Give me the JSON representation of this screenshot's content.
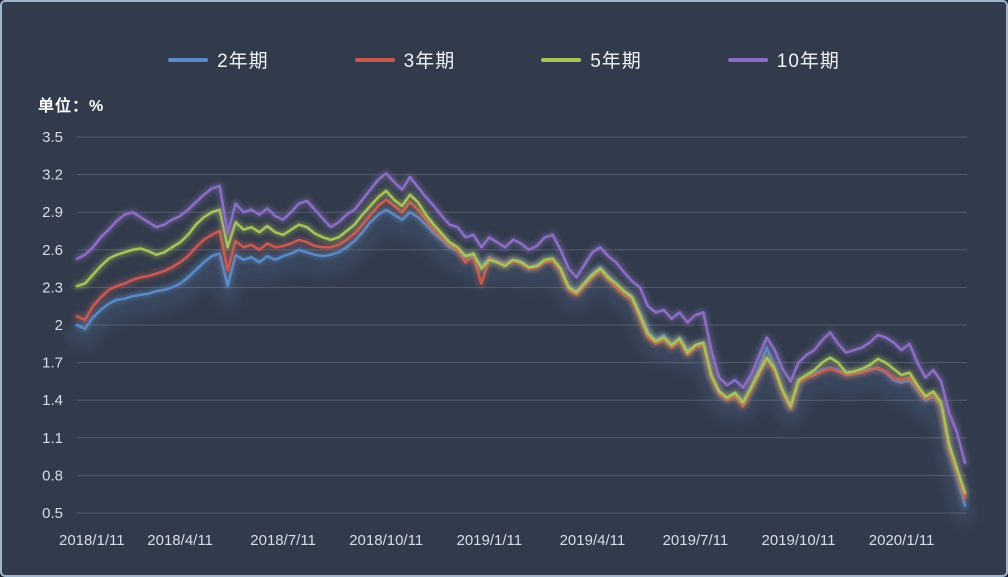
{
  "unit_label": "单位：%",
  "chart_data": {
    "type": "line",
    "title": "",
    "ylabel": "单位：%",
    "ylim": [
      0.5,
      3.5
    ],
    "grid": "horizontal",
    "legend_position": "top",
    "background_color": "#323b4c",
    "yticks": [
      "3.5",
      "3.2",
      "2.9",
      "2.6",
      "2.3",
      "2",
      "1.7",
      "1.4",
      "1.1",
      "0.8",
      "0.5"
    ],
    "x_tick_labels": [
      "2018/1/11",
      "2018/4/11",
      "2018/7/11",
      "2018/10/11",
      "2019/1/11",
      "2019/4/11",
      "2019/7/11",
      "2019/10/11",
      "2020/1/11"
    ],
    "x_tick_indices": [
      0,
      13,
      26,
      39,
      52,
      65,
      78,
      91,
      104
    ],
    "x_unit": "week",
    "n_points": 113,
    "series": [
      {
        "name": "2年期",
        "color": "#5b8ac6",
        "values": [
          2.0,
          1.97,
          2.06,
          2.12,
          2.17,
          2.2,
          2.21,
          2.23,
          2.24,
          2.25,
          2.27,
          2.28,
          2.3,
          2.33,
          2.38,
          2.44,
          2.5,
          2.55,
          2.57,
          2.31,
          2.56,
          2.52,
          2.54,
          2.5,
          2.55,
          2.52,
          2.55,
          2.57,
          2.6,
          2.58,
          2.56,
          2.55,
          2.56,
          2.58,
          2.62,
          2.67,
          2.74,
          2.82,
          2.88,
          2.92,
          2.88,
          2.84,
          2.9,
          2.86,
          2.8,
          2.73,
          2.68,
          2.62,
          2.59,
          2.54,
          2.56,
          2.47,
          2.54,
          2.51,
          2.49,
          2.52,
          2.51,
          2.46,
          2.48,
          2.52,
          2.53,
          2.45,
          2.31,
          2.27,
          2.34,
          2.41,
          2.46,
          2.39,
          2.33,
          2.27,
          2.23,
          2.1,
          1.95,
          1.88,
          1.92,
          1.85,
          1.9,
          1.8,
          1.83,
          1.85,
          1.59,
          1.46,
          1.41,
          1.45,
          1.39,
          1.5,
          1.65,
          1.82,
          1.66,
          1.47,
          1.34,
          1.55,
          1.59,
          1.61,
          1.64,
          1.66,
          1.64,
          1.61,
          1.62,
          1.63,
          1.65,
          1.65,
          1.62,
          1.56,
          1.54,
          1.56,
          1.48,
          1.4,
          1.43,
          1.35,
          1.0,
          0.8,
          0.56
        ]
      },
      {
        "name": "3年期",
        "color": "#c65b54",
        "values": [
          2.07,
          2.04,
          2.15,
          2.22,
          2.28,
          2.31,
          2.33,
          2.36,
          2.38,
          2.39,
          2.41,
          2.43,
          2.46,
          2.5,
          2.55,
          2.62,
          2.68,
          2.72,
          2.75,
          2.44,
          2.67,
          2.62,
          2.64,
          2.6,
          2.65,
          2.62,
          2.63,
          2.65,
          2.68,
          2.66,
          2.63,
          2.62,
          2.62,
          2.64,
          2.68,
          2.73,
          2.8,
          2.88,
          2.95,
          3.0,
          2.95,
          2.9,
          2.98,
          2.92,
          2.84,
          2.76,
          2.7,
          2.64,
          2.6,
          2.5,
          2.55,
          2.33,
          2.53,
          2.5,
          2.48,
          2.51,
          2.49,
          2.45,
          2.46,
          2.5,
          2.51,
          2.43,
          2.28,
          2.24,
          2.31,
          2.38,
          2.43,
          2.36,
          2.3,
          2.24,
          2.2,
          2.05,
          1.9,
          1.85,
          1.88,
          1.82,
          1.87,
          1.76,
          1.82,
          1.84,
          1.58,
          1.45,
          1.4,
          1.43,
          1.35,
          1.48,
          1.6,
          1.73,
          1.63,
          1.46,
          1.33,
          1.54,
          1.58,
          1.6,
          1.63,
          1.65,
          1.63,
          1.6,
          1.61,
          1.62,
          1.64,
          1.66,
          1.63,
          1.58,
          1.56,
          1.58,
          1.49,
          1.41,
          1.44,
          1.36,
          1.02,
          0.82,
          0.62
        ]
      },
      {
        "name": "5年期",
        "color": "#a7c35b",
        "values": [
          2.31,
          2.33,
          2.4,
          2.47,
          2.53,
          2.56,
          2.58,
          2.6,
          2.61,
          2.59,
          2.56,
          2.58,
          2.62,
          2.66,
          2.72,
          2.8,
          2.86,
          2.9,
          2.92,
          2.62,
          2.82,
          2.76,
          2.78,
          2.74,
          2.79,
          2.74,
          2.72,
          2.76,
          2.8,
          2.78,
          2.73,
          2.7,
          2.68,
          2.7,
          2.75,
          2.8,
          2.88,
          2.95,
          3.02,
          3.07,
          3.0,
          2.95,
          3.04,
          2.98,
          2.88,
          2.8,
          2.73,
          2.66,
          2.62,
          2.55,
          2.57,
          2.45,
          2.52,
          2.5,
          2.47,
          2.52,
          2.5,
          2.46,
          2.47,
          2.52,
          2.53,
          2.45,
          2.3,
          2.26,
          2.33,
          2.4,
          2.45,
          2.38,
          2.33,
          2.27,
          2.22,
          2.08,
          1.93,
          1.87,
          1.9,
          1.84,
          1.89,
          1.78,
          1.84,
          1.86,
          1.6,
          1.47,
          1.42,
          1.46,
          1.38,
          1.5,
          1.62,
          1.74,
          1.65,
          1.48,
          1.35,
          1.56,
          1.6,
          1.64,
          1.7,
          1.74,
          1.7,
          1.62,
          1.63,
          1.65,
          1.68,
          1.73,
          1.7,
          1.65,
          1.6,
          1.62,
          1.52,
          1.43,
          1.47,
          1.38,
          1.05,
          0.85,
          0.66
        ]
      },
      {
        "name": "10年期",
        "color": "#8c6fc4",
        "values": [
          2.53,
          2.56,
          2.62,
          2.7,
          2.76,
          2.83,
          2.88,
          2.9,
          2.86,
          2.82,
          2.78,
          2.8,
          2.84,
          2.87,
          2.92,
          2.98,
          3.04,
          3.09,
          3.11,
          2.73,
          2.97,
          2.9,
          2.92,
          2.88,
          2.93,
          2.87,
          2.84,
          2.9,
          2.97,
          2.99,
          2.92,
          2.85,
          2.78,
          2.82,
          2.88,
          2.92,
          3.0,
          3.08,
          3.16,
          3.21,
          3.14,
          3.08,
          3.18,
          3.1,
          3.02,
          2.95,
          2.87,
          2.8,
          2.78,
          2.7,
          2.72,
          2.62,
          2.7,
          2.66,
          2.62,
          2.68,
          2.65,
          2.6,
          2.63,
          2.7,
          2.72,
          2.6,
          2.45,
          2.38,
          2.48,
          2.58,
          2.62,
          2.55,
          2.5,
          2.42,
          2.35,
          2.3,
          2.15,
          2.1,
          2.12,
          2.05,
          2.1,
          2.02,
          2.08,
          2.1,
          1.8,
          1.58,
          1.52,
          1.56,
          1.5,
          1.6,
          1.75,
          1.9,
          1.8,
          1.65,
          1.55,
          1.7,
          1.76,
          1.8,
          1.88,
          1.94,
          1.85,
          1.78,
          1.8,
          1.82,
          1.86,
          1.92,
          1.9,
          1.86,
          1.8,
          1.85,
          1.7,
          1.58,
          1.64,
          1.55,
          1.3,
          1.14,
          0.9
        ]
      }
    ]
  }
}
